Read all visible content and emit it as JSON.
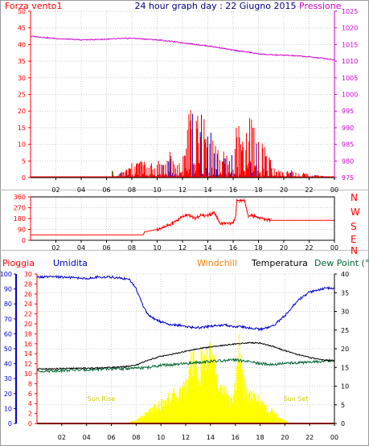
{
  "chart_data": [
    {
      "type": "line",
      "title": "24 hour graph day : 22 Giugno 2015",
      "left_label": "Forza vento1",
      "right_label": "Pressione",
      "ylim_left": [
        0,
        50
      ],
      "left_ticks": [
        "0",
        "5",
        "10",
        "15",
        "20",
        "25",
        "30",
        "35",
        "40",
        "45",
        "50"
      ],
      "ylim_right": [
        975,
        1025
      ],
      "right_ticks": [
        "975",
        "980",
        "985",
        "990",
        "995",
        "1000",
        "1005",
        "1010",
        "1015",
        "1020",
        "1025"
      ],
      "x_ticks": [
        "02",
        "04",
        "06",
        "08",
        "10",
        "12",
        "14",
        "16",
        "18",
        "20",
        "22",
        "00"
      ],
      "colors": {
        "wind": "#ff0000",
        "wind_alt": "#0000cc",
        "wind_dir_small": "#00aa00",
        "pressure": "#cc00cc",
        "left_axis": "#ff0000",
        "right_axis": "#cc00cc"
      },
      "series": [
        {
          "name": "Pressione",
          "x": [
            0,
            2,
            4,
            6,
            8,
            10,
            11,
            12,
            14,
            15,
            16,
            17,
            18,
            19,
            20,
            21,
            22,
            23,
            24
          ],
          "values": [
            1017.5,
            1016.8,
            1016.4,
            1016.6,
            1016.9,
            1016.4,
            1016.0,
            1015.5,
            1014.6,
            1014.0,
            1013.3,
            1012.8,
            1012.2,
            1011.9,
            1011.8,
            1011.6,
            1011.3,
            1010.9,
            1010.4
          ]
        },
        {
          "name": "Forza vento1",
          "x": [
            0,
            6.4,
            6.5,
            6.6,
            8.5,
            9.9,
            10.1,
            10.6,
            11.0,
            11.6,
            12.2,
            12.4,
            12.7,
            13.0,
            13.3,
            13.6,
            13.9,
            14.2,
            14.4,
            14.8,
            15.2,
            15.8,
            16.3,
            16.6,
            16.9,
            17.2,
            17.5,
            17.8,
            18.1,
            18.4,
            18.8,
            19.2,
            24
          ],
          "values": [
            0,
            0,
            6,
            0,
            6,
            4,
            6,
            5,
            8,
            4,
            10,
            19,
            22,
            20,
            18,
            22,
            15,
            19,
            13,
            9,
            8,
            6,
            17,
            14,
            9,
            19,
            22,
            18,
            7,
            14,
            7,
            3,
            0
          ]
        }
      ]
    },
    {
      "type": "line",
      "left_ticks": [
        "0",
        "90",
        "180",
        "270",
        "360"
      ],
      "ylim": [
        0,
        360
      ],
      "compass_labels": [
        "N",
        "W",
        "S",
        "E",
        "N"
      ],
      "colors": {
        "line": "#ff0000",
        "axis": "#ff0000"
      },
      "x_ticks": [
        "02",
        "04",
        "06",
        "08",
        "10",
        "12",
        "14",
        "16",
        "18",
        "20",
        "22",
        "00"
      ],
      "series": [
        {
          "name": "direction",
          "x": [
            0,
            8.9,
            9.0,
            10.0,
            10.5,
            11.0,
            11.5,
            12.0,
            12.5,
            13.0,
            13.5,
            14.0,
            14.5,
            15.0,
            15.5,
            16.0,
            16.2,
            16.3,
            16.9,
            17.2,
            17.5,
            18.0,
            18.5,
            19.0,
            24
          ],
          "values": [
            45,
            45,
            70,
            90,
            105,
            130,
            160,
            195,
            210,
            180,
            210,
            205,
            230,
            135,
            145,
            140,
            200,
            330,
            330,
            200,
            205,
            190,
            175,
            165,
            165
          ]
        }
      ]
    },
    {
      "type": "area",
      "header_labels": [
        "Pioggia",
        "Umidita",
        "Windchill",
        "Temperatura",
        "Dew Point (°C"
      ],
      "left_ticks_pioggia": [
        "0",
        "2",
        "4",
        "6",
        "8",
        "10",
        "12",
        "14",
        "16",
        "18",
        "20",
        "22",
        "24",
        "26",
        "28",
        "30"
      ],
      "ylim_pioggia": [
        0,
        30
      ],
      "left_ticks_umidita": [
        "0",
        "10",
        "20",
        "30",
        "40",
        "50",
        "60",
        "70",
        "80",
        "90",
        "100"
      ],
      "ylim_umidita": [
        0,
        100
      ],
      "right_ticks": [
        "0",
        "5",
        "10",
        "15",
        "20",
        "25",
        "30",
        "35",
        "40"
      ],
      "ylim_right": [
        0,
        40
      ],
      "sun_rise_label": "Sun Rise",
      "sun_set_label": "Sun Set",
      "x_ticks": [
        "02",
        "04",
        "06",
        "08",
        "10",
        "12",
        "14",
        "16",
        "18",
        "20",
        "22",
        "00"
      ],
      "colors": {
        "pioggia": "#ff0000",
        "umidita": "#0000cc",
        "windchill": "#ff8000",
        "temperatura": "#000000",
        "dewpoint": "#006633",
        "solar": "#ffff00",
        "sun_text": "#cccc00"
      },
      "series": [
        {
          "name": "Umidita",
          "x": [
            0,
            2,
            4,
            5,
            6,
            7,
            7.5,
            8,
            8.5,
            9,
            9.5,
            10,
            11,
            12,
            13,
            14,
            15,
            16,
            17,
            18,
            19,
            20,
            21,
            22,
            23,
            24
          ],
          "values": [
            98,
            98,
            97,
            98,
            98,
            97,
            96,
            90,
            80,
            72,
            70,
            68,
            66,
            65,
            64,
            65,
            66,
            65,
            64,
            63,
            65,
            72,
            82,
            88,
            90,
            91
          ]
        },
        {
          "name": "Temperatura",
          "x": [
            0,
            2,
            4,
            6,
            7,
            8,
            8.5,
            9,
            10,
            11,
            12,
            13,
            14,
            15,
            16,
            17,
            18,
            19,
            20,
            21,
            22,
            23,
            24
          ],
          "values": [
            14.5,
            14.7,
            14.8,
            15.0,
            15.2,
            15.6,
            16.3,
            17,
            18,
            18.6,
            19.3,
            20.0,
            20.5,
            20.9,
            21.3,
            21.6,
            21.5,
            20.7,
            19.5,
            18.5,
            17.7,
            17.0,
            16.8
          ]
        },
        {
          "name": "Dew Point",
          "x": [
            0,
            2,
            4,
            6,
            8,
            9,
            10,
            11,
            12,
            13,
            14,
            15,
            16,
            17,
            18,
            19,
            20,
            21,
            22,
            23,
            24
          ],
          "values": [
            14.0,
            14.2,
            14.4,
            14.6,
            14.8,
            15.0,
            15.6,
            15.7,
            16.0,
            16.4,
            16.6,
            16.8,
            17.0,
            16.6,
            16.0,
            15.8,
            16.1,
            16.3,
            16.4,
            16.6,
            16.8
          ]
        },
        {
          "name": "Windchill",
          "x": [
            0,
            24
          ],
          "values": [
            0,
            0
          ]
        },
        {
          "name": "Pioggia",
          "x": [
            0,
            24
          ],
          "values": [
            0,
            0
          ]
        },
        {
          "name": "solar",
          "x": [
            0,
            7.0,
            7.5,
            8.0,
            8.5,
            9.0,
            9.5,
            10.0,
            10.5,
            11.0,
            11.5,
            12.0,
            12.3,
            12.6,
            13.0,
            13.3,
            13.6,
            14.0,
            14.3,
            14.6,
            15.0,
            15.3,
            15.6,
            16.0,
            16.3,
            16.6,
            17.0,
            17.4,
            17.8,
            18.2,
            18.6,
            19.0,
            19.5,
            20.0,
            20.5,
            24
          ],
          "values": [
            0,
            0,
            0.5,
            1.0,
            2.5,
            4.0,
            5.5,
            6.5,
            8.0,
            9.5,
            10,
            13,
            19,
            24,
            14,
            22,
            18,
            26,
            19,
            12,
            11,
            10,
            7,
            12,
            25,
            16,
            10,
            9,
            8,
            6,
            5,
            4,
            2,
            1,
            0,
            0
          ]
        }
      ]
    }
  ]
}
